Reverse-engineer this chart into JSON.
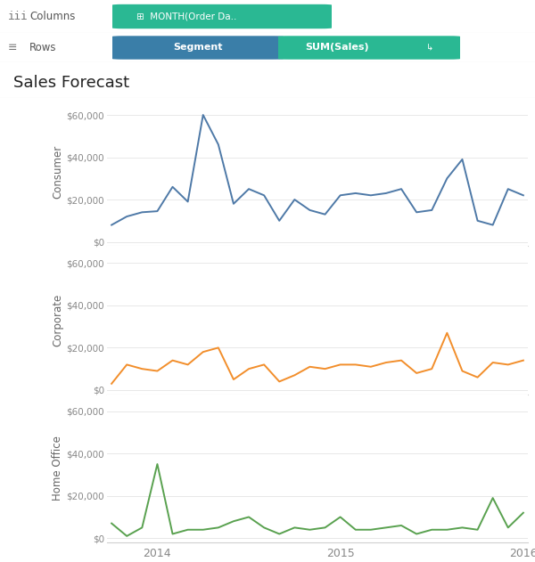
{
  "title": "Sales Forecast",
  "bg_color": "#ffffff",
  "header_bg": "#f8f8f8",
  "segments": [
    "Consumer",
    "Corporate",
    "Home Office"
  ],
  "segment_colors": [
    "#4e79a7",
    "#f28e2b",
    "#59a14f"
  ],
  "x_labels": [
    "2014",
    "2015",
    "2016"
  ],
  "yticks": [
    0,
    20000,
    40000,
    60000
  ],
  "ylim": [
    -2000,
    68000
  ],
  "consumer_data": [
    8000,
    12000,
    14000,
    14500,
    26000,
    19000,
    60000,
    46000,
    18000,
    25000,
    22000,
    10000,
    20000,
    15000,
    13000,
    22000,
    23000,
    22000,
    23000,
    25000,
    14000,
    15000,
    30000,
    39000,
    10000,
    8000,
    25000,
    22000
  ],
  "corporate_data": [
    3000,
    12000,
    10000,
    9000,
    14000,
    12000,
    18000,
    20000,
    5000,
    10000,
    12000,
    4000,
    7000,
    11000,
    10000,
    12000,
    12000,
    11000,
    13000,
    14000,
    8000,
    10000,
    27000,
    9000,
    6000,
    13000,
    12000,
    14000
  ],
  "home_office_data": [
    7000,
    1000,
    5000,
    35000,
    2000,
    4000,
    4000,
    5000,
    8000,
    10000,
    5000,
    2000,
    5000,
    4000,
    5000,
    10000,
    4000,
    4000,
    5000,
    6000,
    2000,
    4000,
    4000,
    5000,
    4000,
    19000,
    5000,
    12000
  ],
  "n_points": 28,
  "grid_color": "#e8e8e8",
  "tick_label_color": "#888888",
  "title_color": "#222222",
  "spine_color": "#d0d0d0",
  "teal_color": "#2ab893",
  "segment_pill_color": "#3a7ea8",
  "toolbar_bg": "#f5f5f5",
  "separator_color": "#d8d8d8"
}
